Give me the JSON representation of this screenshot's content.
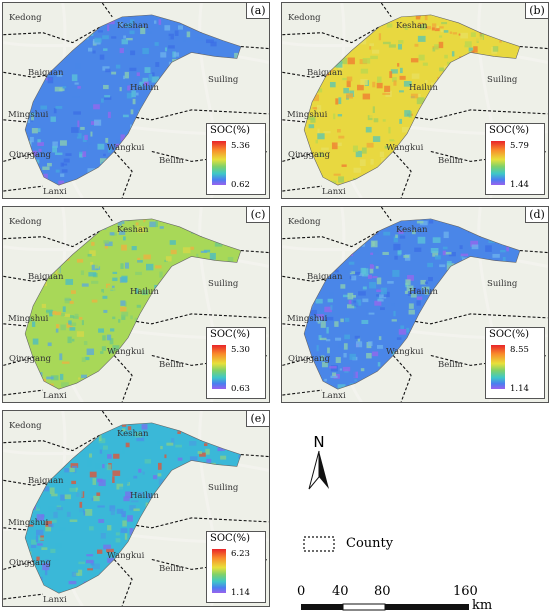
{
  "panels": [
    {
      "letter": "(a)",
      "soc_min": "0.62",
      "soc_max": "5.36",
      "tone": "blue"
    },
    {
      "letter": "(b)",
      "soc_min": "1.44",
      "soc_max": "5.79",
      "tone": "warm"
    },
    {
      "letter": "(c)",
      "soc_min": "0.63",
      "soc_max": "5.30",
      "tone": "green"
    },
    {
      "letter": "(d)",
      "soc_min": "1.14",
      "soc_max": "8.55",
      "tone": "blue"
    },
    {
      "letter": "(e)",
      "soc_min": "1.14",
      "soc_max": "6.23",
      "tone": "teal"
    }
  ],
  "legend_title": "SOC(%)",
  "places": {
    "kedong": "Kedong",
    "keshan": "Keshan",
    "baiquan": "Baiquan",
    "hailun": "Hailun",
    "suiling": "Suiling",
    "mingshui": "Mingshui",
    "qinggang": "Qinggang",
    "wangkui": "Wangkui",
    "beilin": "Beilin",
    "lanxi": "Lanxi"
  },
  "north_label": "N",
  "county_label": "County",
  "scale": {
    "ticks": [
      "0",
      "40",
      "80",
      "160"
    ],
    "unit": "km"
  },
  "colors": {
    "border": "#555555",
    "basemap": "#eef0e8",
    "road": "#f3f3ee",
    "boundary": "#111111"
  }
}
